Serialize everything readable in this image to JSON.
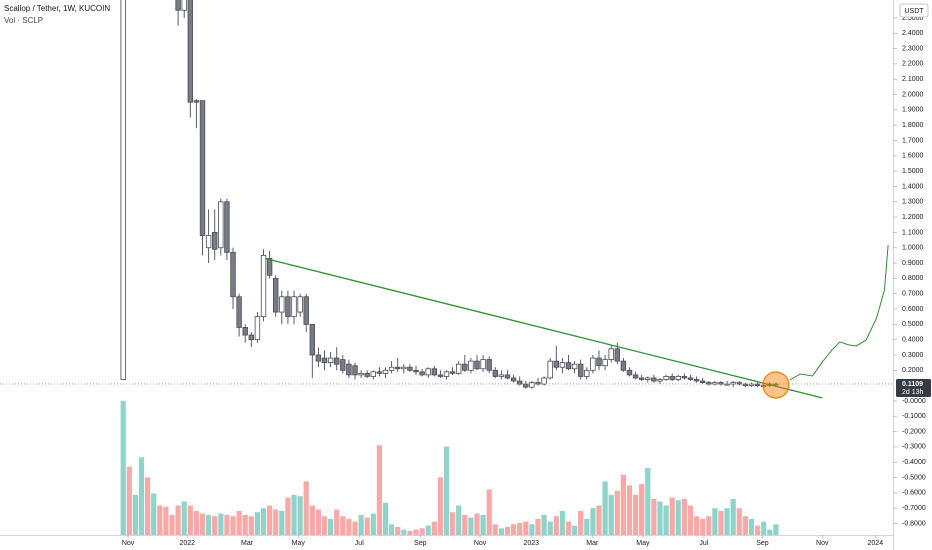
{
  "chart_data": {
    "type": "candlestick",
    "title": "Scallop / Tether, 1W, KUCOIN",
    "subtitle": "Vol · SCLP",
    "currency": "USDT",
    "x": [
      0,
      1,
      2,
      3,
      4,
      5,
      6,
      7,
      8,
      9,
      10,
      11,
      12,
      13,
      14,
      15,
      16,
      17,
      18,
      19,
      20,
      21,
      22,
      23,
      24,
      25,
      26,
      27,
      28,
      29,
      30,
      31,
      32,
      33,
      34,
      35,
      36,
      37,
      38,
      39,
      40,
      41,
      42,
      43,
      44,
      45,
      46,
      47,
      48,
      49,
      50,
      51,
      52,
      53,
      54,
      55,
      56,
      57,
      58,
      59,
      60,
      61,
      62,
      63,
      64,
      65,
      66,
      67,
      68,
      69,
      70,
      71,
      72,
      73,
      74,
      75,
      76,
      77,
      78,
      79,
      80,
      81,
      82,
      83,
      84,
      85,
      86,
      87,
      88,
      89,
      90,
      91,
      92,
      93,
      94,
      95,
      96,
      97,
      98,
      99,
      100,
      101,
      102,
      103,
      104,
      105,
      106,
      107
    ],
    "open": [
      0.14,
      null,
      null,
      null,
      null,
      null,
      null,
      null,
      null,
      2.62,
      2.55,
      2.62,
      1.96,
      1.96,
      1.0,
      1.1,
      1.0,
      1.3,
      0.97,
      0.68,
      0.48,
      0.43,
      0.4,
      0.55,
      0.93,
      0.8,
      0.58,
      0.68,
      0.55,
      0.58,
      0.68,
      0.5,
      0.3,
      0.28,
      0.25,
      0.28,
      0.27,
      0.24,
      0.23,
      0.17,
      0.18,
      0.16,
      0.19,
      0.18,
      0.2,
      0.22,
      0.21,
      0.22,
      0.2,
      0.19,
      0.17,
      0.21,
      0.17,
      0.16,
      0.19,
      0.18,
      0.24,
      0.2,
      0.26,
      0.21,
      0.27,
      0.2,
      0.16,
      0.17,
      0.15,
      0.13,
      0.11,
      0.09,
      0.12,
      0.11,
      0.15,
      0.26,
      0.22,
      0.25,
      0.21,
      0.24,
      0.16,
      0.2,
      0.28,
      0.23,
      0.27,
      0.34,
      0.26,
      0.2,
      0.17,
      0.15,
      0.14,
      0.15,
      0.13,
      0.14,
      0.16,
      0.14,
      0.16,
      0.15,
      0.14,
      0.13,
      0.12,
      0.11,
      0.12,
      0.11,
      0.11,
      0.12,
      0.11,
      0.1,
      0.11,
      0.1,
      0.1,
      0.11
    ],
    "high": [
      2.62,
      null,
      null,
      null,
      null,
      null,
      null,
      null,
      null,
      2.62,
      2.62,
      2.62,
      1.97,
      1.96,
      1.25,
      1.25,
      1.32,
      1.32,
      1.0,
      0.7,
      0.5,
      0.45,
      0.58,
      0.99,
      0.98,
      0.82,
      0.72,
      0.72,
      0.72,
      0.7,
      0.7,
      0.5,
      0.35,
      0.33,
      0.32,
      0.35,
      0.3,
      0.27,
      0.25,
      0.2,
      0.2,
      0.2,
      0.22,
      0.22,
      0.26,
      0.28,
      0.24,
      0.24,
      0.23,
      0.21,
      0.22,
      0.23,
      0.2,
      0.2,
      0.22,
      0.26,
      0.3,
      0.28,
      0.3,
      0.3,
      0.29,
      0.22,
      0.2,
      0.2,
      0.17,
      0.16,
      0.13,
      0.13,
      0.15,
      0.16,
      0.28,
      0.36,
      0.28,
      0.3,
      0.26,
      0.27,
      0.22,
      0.3,
      0.33,
      0.3,
      0.36,
      0.38,
      0.28,
      0.22,
      0.19,
      0.17,
      0.16,
      0.17,
      0.15,
      0.17,
      0.18,
      0.17,
      0.18,
      0.17,
      0.16,
      0.15,
      0.13,
      0.13,
      0.13,
      0.13,
      0.13,
      0.13,
      0.12,
      0.12,
      0.12,
      0.11,
      0.12,
      0.12
    ],
    "low": [
      0.14,
      null,
      null,
      null,
      null,
      null,
      null,
      null,
      null,
      2.45,
      2.5,
      1.85,
      1.78,
      0.95,
      0.9,
      0.92,
      0.95,
      0.92,
      0.6,
      0.42,
      0.38,
      0.35,
      0.38,
      0.52,
      0.8,
      0.55,
      0.5,
      0.5,
      0.5,
      0.55,
      0.45,
      0.15,
      0.22,
      0.2,
      0.22,
      0.2,
      0.18,
      0.15,
      0.14,
      0.15,
      0.15,
      0.14,
      0.16,
      0.15,
      0.18,
      0.19,
      0.18,
      0.19,
      0.17,
      0.16,
      0.15,
      0.16,
      0.15,
      0.14,
      0.17,
      0.17,
      0.19,
      0.18,
      0.2,
      0.19,
      0.18,
      0.15,
      0.14,
      0.14,
      0.12,
      0.1,
      0.08,
      0.08,
      0.1,
      0.1,
      0.14,
      0.2,
      0.18,
      0.2,
      0.18,
      0.14,
      0.14,
      0.18,
      0.2,
      0.2,
      0.25,
      0.24,
      0.19,
      0.16,
      0.14,
      0.13,
      0.12,
      0.12,
      0.11,
      0.13,
      0.13,
      0.13,
      0.14,
      0.13,
      0.12,
      0.11,
      0.1,
      0.1,
      0.1,
      0.1,
      0.09,
      0.1,
      0.09,
      0.09,
      0.09,
      0.08,
      0.09,
      0.1
    ],
    "close": [
      2.62,
      null,
      null,
      null,
      null,
      null,
      null,
      null,
      null,
      2.55,
      2.62,
      1.95,
      1.95,
      1.08,
      1.08,
      0.99,
      1.3,
      0.97,
      0.68,
      0.48,
      0.43,
      0.4,
      0.55,
      0.95,
      0.82,
      0.58,
      0.68,
      0.55,
      0.68,
      0.68,
      0.5,
      0.3,
      0.26,
      0.25,
      0.28,
      0.24,
      0.2,
      0.17,
      0.17,
      0.18,
      0.16,
      0.19,
      0.18,
      0.2,
      0.22,
      0.21,
      0.22,
      0.2,
      0.19,
      0.17,
      0.21,
      0.17,
      0.16,
      0.19,
      0.18,
      0.24,
      0.2,
      0.26,
      0.21,
      0.27,
      0.2,
      0.16,
      0.17,
      0.15,
      0.13,
      0.11,
      0.09,
      0.12,
      0.11,
      0.15,
      0.26,
      0.22,
      0.25,
      0.21,
      0.24,
      0.16,
      0.2,
      0.28,
      0.23,
      0.27,
      0.34,
      0.26,
      0.2,
      0.17,
      0.15,
      0.14,
      0.15,
      0.13,
      0.14,
      0.16,
      0.14,
      0.16,
      0.15,
      0.14,
      0.13,
      0.12,
      0.11,
      0.12,
      0.11,
      0.11,
      0.12,
      0.11,
      0.1,
      0.11,
      0.1,
      0.1,
      0.11,
      0.1109
    ],
    "up_color": "#ffffff",
    "down_color": "#787b86",
    "border_color": "#4a4d57",
    "volume": {
      "ylim": [
        0,
        100
      ],
      "values": [
        100,
        51,
        30,
        58,
        43,
        31,
        22,
        21,
        15,
        22,
        25,
        22,
        18,
        16,
        15,
        14,
        16,
        15,
        14,
        18,
        15,
        14,
        17,
        20,
        22,
        19,
        18,
        28,
        30,
        29,
        40,
        22,
        19,
        14,
        12,
        19,
        14,
        12,
        10,
        15,
        13,
        16,
        67,
        24,
        8,
        6,
        4,
        3,
        4,
        5,
        7,
        10,
        43,
        66,
        17,
        22,
        15,
        13,
        16,
        15,
        34,
        8,
        5,
        6,
        8,
        9,
        10,
        8,
        12,
        15,
        10,
        14,
        18,
        10,
        7,
        18,
        12,
        20,
        22,
        40,
        30,
        33,
        45,
        37,
        30,
        38,
        50,
        27,
        25,
        22,
        28,
        26,
        27,
        22,
        14,
        12,
        14,
        20,
        18,
        20,
        27,
        20,
        14,
        12,
        7,
        10,
        4,
        8
      ],
      "colors": [
        "#8fd3cb",
        "#f7a9a7",
        "#8fd3cb",
        "#8fd3cb",
        "#f7a9a7",
        "#8fd3cb",
        "#f7a9a7",
        "#f7a9a7",
        "#f7a9a7",
        "#f7a9a7",
        "#8fd3cb",
        "#f7a9a7",
        "#f7a9a7",
        "#f7a9a7",
        "#8fd3cb",
        "#f7a9a7",
        "#8fd3cb",
        "#f7a9a7",
        "#f7a9a7",
        "#f7a9a7",
        "#f7a9a7",
        "#f7a9a7",
        "#8fd3cb",
        "#8fd3cb",
        "#f7a9a7",
        "#f7a9a7",
        "#8fd3cb",
        "#f7a9a7",
        "#8fd3cb",
        "#8fd3cb",
        "#f7a9a7",
        "#f7a9a7",
        "#f7a9a7",
        "#f7a9a7",
        "#8fd3cb",
        "#f7a9a7",
        "#f7a9a7",
        "#f7a9a7",
        "#f7a9a7",
        "#8fd3cb",
        "#f7a9a7",
        "#8fd3cb",
        "#f7a9a7",
        "#8fd3cb",
        "#8fd3cb",
        "#f7a9a7",
        "#8fd3cb",
        "#f7a9a7",
        "#f7a9a7",
        "#f7a9a7",
        "#8fd3cb",
        "#f7a9a7",
        "#f7a9a7",
        "#8fd3cb",
        "#f7a9a7",
        "#8fd3cb",
        "#f7a9a7",
        "#8fd3cb",
        "#f7a9a7",
        "#8fd3cb",
        "#f7a9a7",
        "#f7a9a7",
        "#8fd3cb",
        "#f7a9a7",
        "#f7a9a7",
        "#f7a9a7",
        "#f7a9a7",
        "#8fd3cb",
        "#f7a9a7",
        "#8fd3cb",
        "#8fd3cb",
        "#f7a9a7",
        "#8fd3cb",
        "#f7a9a7",
        "#8fd3cb",
        "#f7a9a7",
        "#8fd3cb",
        "#8fd3cb",
        "#f7a9a7",
        "#8fd3cb",
        "#8fd3cb",
        "#f7a9a7",
        "#f7a9a7",
        "#f7a9a7",
        "#f7a9a7",
        "#f7a9a7",
        "#8fd3cb",
        "#f7a9a7",
        "#8fd3cb",
        "#8fd3cb",
        "#f7a9a7",
        "#8fd3cb",
        "#f7a9a7",
        "#f7a9a7",
        "#f7a9a7",
        "#f7a9a7",
        "#f7a9a7",
        "#8fd3cb",
        "#f7a9a7",
        "#8fd3cb",
        "#8fd3cb",
        "#f7a9a7",
        "#f7a9a7",
        "#8fd3cb",
        "#f7a9a7",
        "#8fd3cb",
        "#8fd3cb",
        "#8fd3cb"
      ]
    },
    "xlim": [
      -20.2,
      126.2
    ],
    "ylim": [
      -0.875,
      2.617
    ],
    "xticks": [
      {
        "value": 0.8,
        "label": "Nov"
      },
      {
        "value": 10.5,
        "label": "2022"
      },
      {
        "value": 20.3,
        "label": "Mar"
      },
      {
        "value": 28.7,
        "label": "May"
      },
      {
        "value": 38.7,
        "label": "Jul"
      },
      {
        "value": 48.7,
        "label": "Sep"
      },
      {
        "value": 58.5,
        "label": "Nov"
      },
      {
        "value": 66.9,
        "label": "2023"
      },
      {
        "value": 76.9,
        "label": "Mar"
      },
      {
        "value": 85.2,
        "label": "May"
      },
      {
        "value": 95.2,
        "label": "Jul"
      },
      {
        "value": 104.8,
        "label": "Sep"
      },
      {
        "value": 114.6,
        "label": "Nov"
      },
      {
        "value": 123.3,
        "label": "2024"
      }
    ],
    "yticks": [
      {
        "value": 2.5,
        "label": "2.5000"
      },
      {
        "value": 2.4,
        "label": "2.4000"
      },
      {
        "value": 2.3,
        "label": "2.3000"
      },
      {
        "value": 2.2,
        "label": "2.2000"
      },
      {
        "value": 2.1,
        "label": "2.1000"
      },
      {
        "value": 2.0,
        "label": "2.0000"
      },
      {
        "value": 1.9,
        "label": "1.9000"
      },
      {
        "value": 1.8,
        "label": "1.8000"
      },
      {
        "value": 1.7,
        "label": "1.7000"
      },
      {
        "value": 1.6,
        "label": "1.6000"
      },
      {
        "value": 1.5,
        "label": "1.5000"
      },
      {
        "value": 1.4,
        "label": "1.4000"
      },
      {
        "value": 1.3,
        "label": "1.3000"
      },
      {
        "value": 1.2,
        "label": "1.2000"
      },
      {
        "value": 1.1,
        "label": "1.1000"
      },
      {
        "value": 1.0,
        "label": "1.0000"
      },
      {
        "value": 0.9,
        "label": "0.9000"
      },
      {
        "value": 0.8,
        "label": "0.8000"
      },
      {
        "value": 0.7,
        "label": "0.7000"
      },
      {
        "value": 0.6,
        "label": "0.6000"
      },
      {
        "value": 0.5,
        "label": "0.5000"
      },
      {
        "value": 0.4,
        "label": "0.4000"
      },
      {
        "value": 0.3,
        "label": "0.3000"
      },
      {
        "value": 0.2,
        "label": "0.2000"
      },
      {
        "value": 0,
        "label": "-0.0000"
      },
      {
        "value": -0.1,
        "label": "-0.1000"
      },
      {
        "value": -0.2,
        "label": "-0.2000"
      },
      {
        "value": -0.3,
        "label": "-0.3000"
      },
      {
        "value": -0.4,
        "label": "-0.4000"
      },
      {
        "value": -0.5,
        "label": "-0.5000"
      },
      {
        "value": -0.6,
        "label": "-0.6000"
      },
      {
        "value": -0.7,
        "label": "-0.7000"
      },
      {
        "value": -0.8,
        "label": "-0.8000"
      }
    ],
    "last_price": 0.1109,
    "countdown": "2d 13h",
    "trendline": {
      "x": [
        23.3,
        114.6
      ],
      "values": [
        0.93,
        0.02
      ],
      "color": "#2f8f35"
    },
    "projection": {
      "x": [
        109.3,
        111.0,
        113.0,
        114.6,
        116.2,
        117.5,
        118.9,
        120.2,
        121.8,
        123.5,
        124.8,
        125.4
      ],
      "values": [
        0.137,
        0.176,
        0.163,
        0.254,
        0.333,
        0.385,
        0.366,
        0.359,
        0.398,
        0.541,
        0.724,
        1.018
      ],
      "color": "#2f8f35"
    },
    "highlight": {
      "x": 107.0,
      "value": 0.104,
      "color": "#f57c00"
    }
  }
}
